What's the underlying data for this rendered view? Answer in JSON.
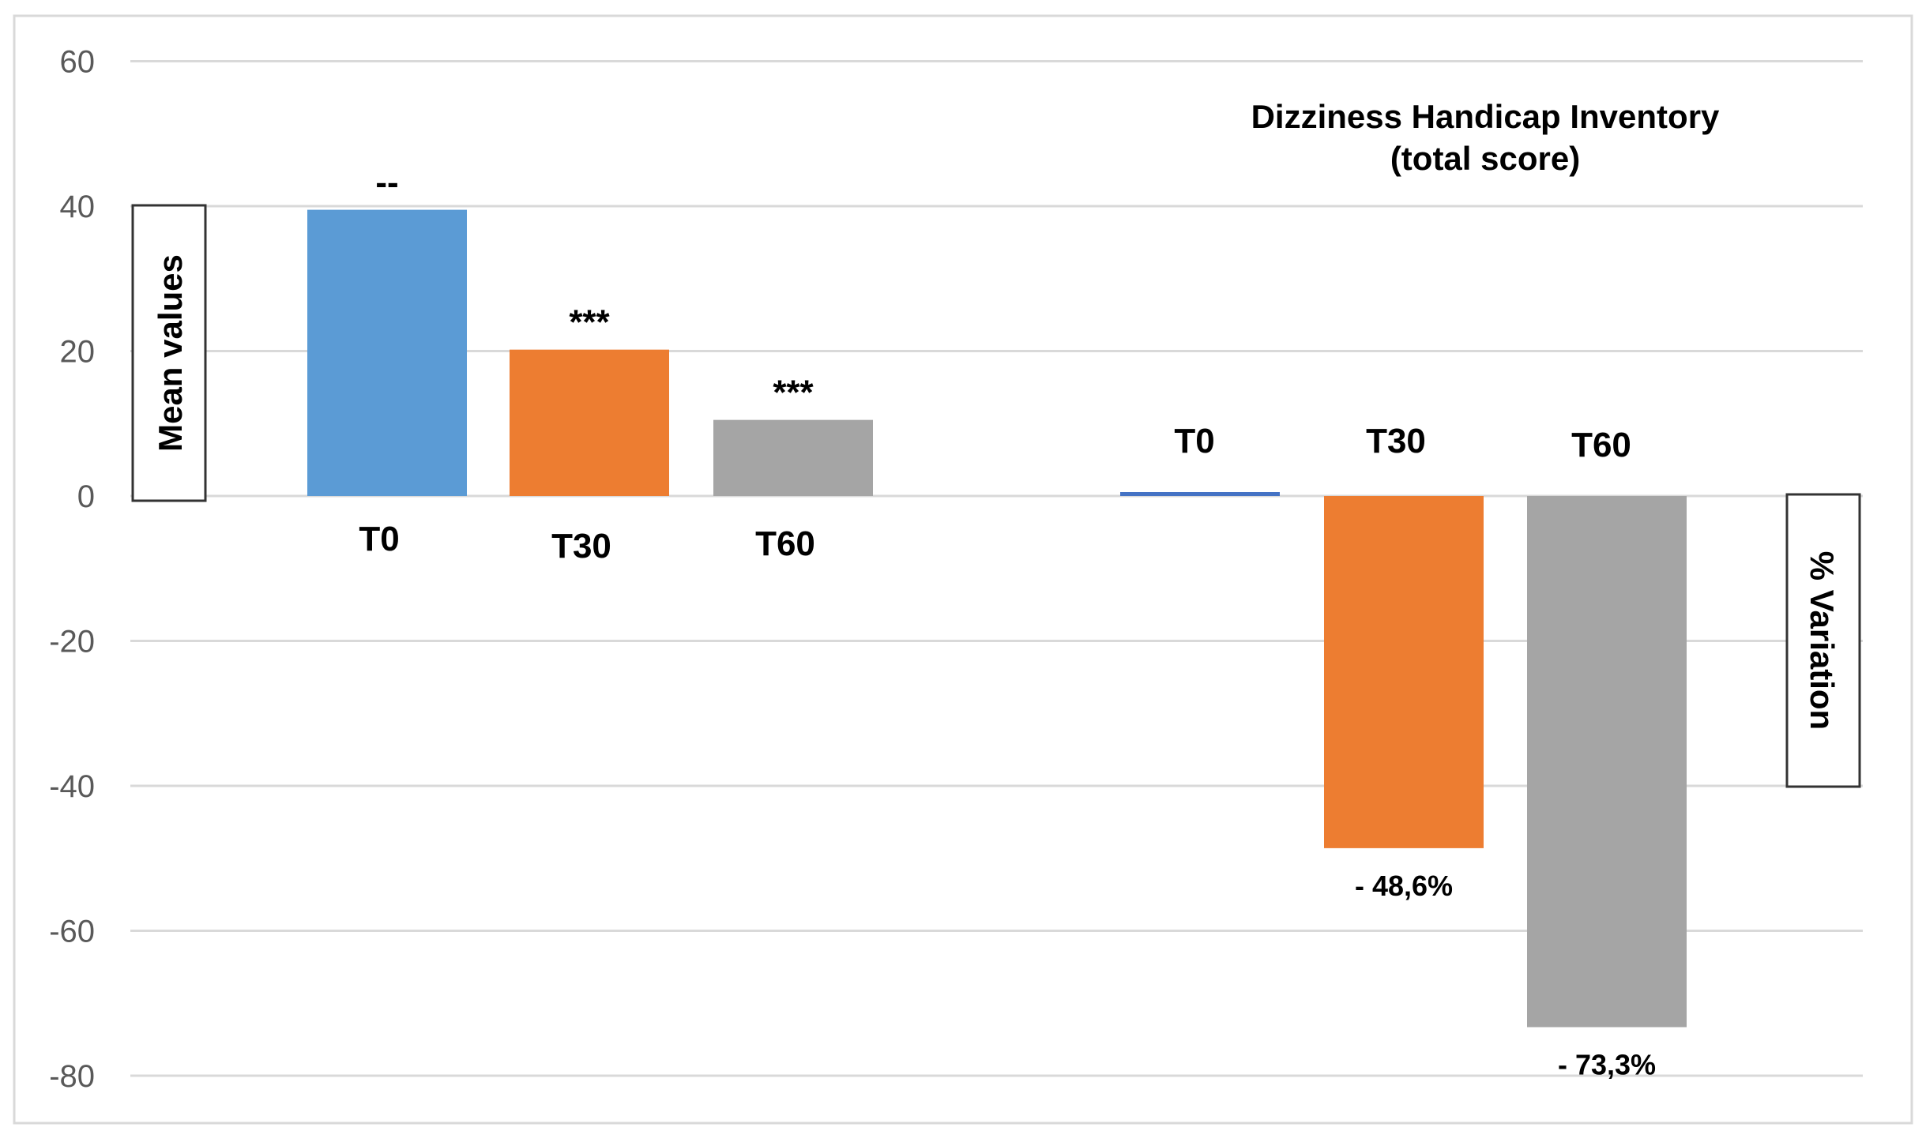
{
  "chart_data": {
    "type": "bar",
    "title": "Dizziness Handicap Inventory",
    "subtitle": "(total score)",
    "y_ticks": [
      60,
      40,
      20,
      0,
      -20,
      -40,
      -60,
      -80
    ],
    "ylim": [
      -80,
      60
    ],
    "grid": true,
    "colors": {
      "T0": "#5b9bd5",
      "T30": "#ed7d31",
      "T60": "#a5a5a5",
      "T0_variation": "#4472c4"
    },
    "groups": [
      {
        "name": "Mean values",
        "ylabel": "Mean values",
        "categories": [
          "T0",
          "T30",
          "T60"
        ],
        "values": [
          39.5,
          20.2,
          10.5
        ],
        "significance": [
          "--",
          "***",
          "***"
        ]
      },
      {
        "name": "% Variation",
        "ylabel": "% Variation",
        "categories": [
          "T0",
          "T30",
          "T60"
        ],
        "values": [
          0.5,
          -48.6,
          -73.3
        ],
        "value_labels": [
          "",
          "- 48,6%",
          "- 73,3%"
        ]
      }
    ]
  }
}
